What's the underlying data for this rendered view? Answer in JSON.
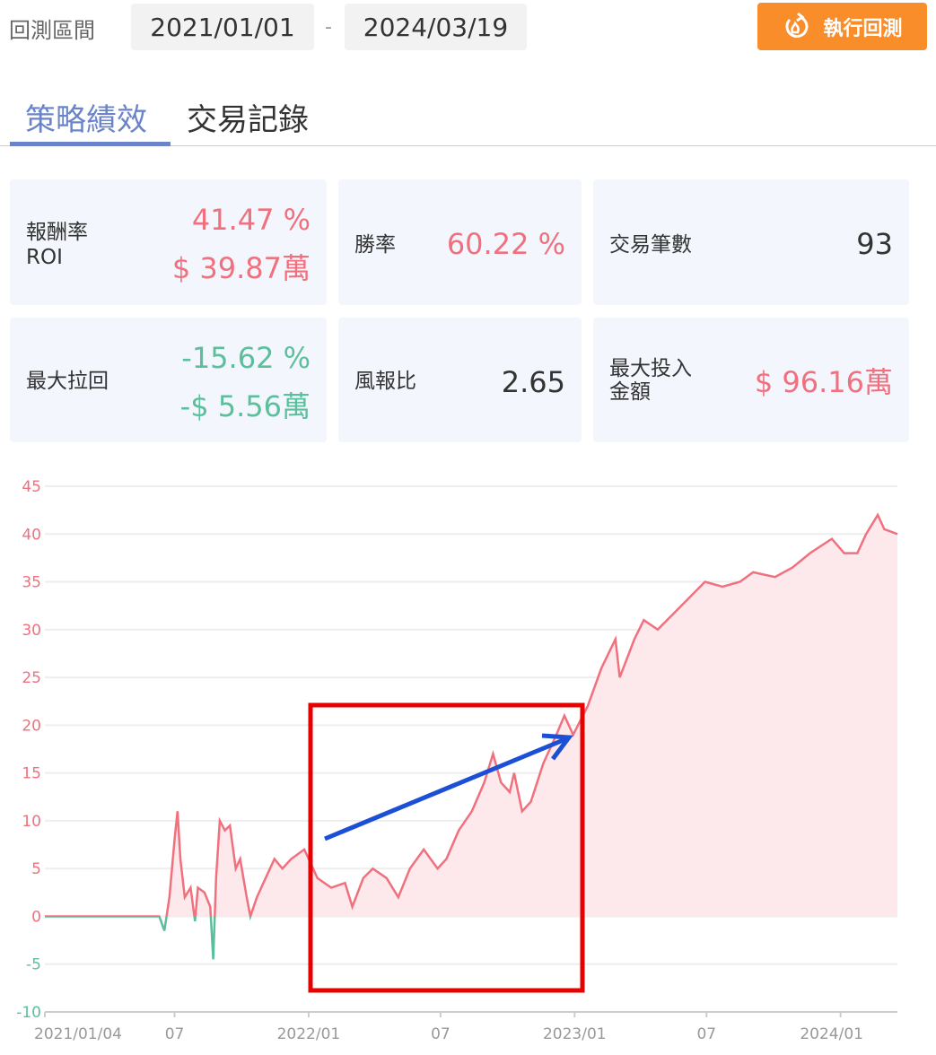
{
  "header": {
    "range_label": "回測區間",
    "start_date": "2021/01/01",
    "separator": "-",
    "end_date": "2024/03/19",
    "run_button": "執行回測",
    "run_icon": "refresh-fire-icon"
  },
  "tabs": [
    {
      "label": "策略績效",
      "active": true
    },
    {
      "label": "交易記錄",
      "active": false
    }
  ],
  "stats": {
    "roi": {
      "label1": "報酬率",
      "label2": "ROI",
      "pct": "41.47 %",
      "amount": "$ 39.87萬"
    },
    "win_rate": {
      "label": "勝率",
      "value": "60.22 %"
    },
    "trades": {
      "label": "交易筆數",
      "value": "93"
    },
    "drawdown": {
      "label": "最大拉回",
      "pct": "-15.62 %",
      "amount": "-$ 5.56萬"
    },
    "risk_reward": {
      "label": "風報比",
      "value": "2.65"
    },
    "max_invest": {
      "label1": "最大投入",
      "label2": "金額",
      "value": "$ 96.16萬"
    }
  },
  "colors": {
    "positive": "#f0707e",
    "negative": "#5cbf9c",
    "accent": "#6b84c9",
    "button": "#f98d2a",
    "card_bg": "#f3f6fd",
    "annotation_box": "#e60000",
    "annotation_arrow": "#1a4fd6"
  },
  "chart_data": {
    "type": "area",
    "ylim": [
      -10,
      45
    ],
    "yticks": [
      "45",
      "40",
      "35",
      "30",
      "25",
      "20",
      "15",
      "10",
      "5",
      "0",
      "-5",
      "-10"
    ],
    "xrange": [
      "2021/01/04",
      "2024/03/19"
    ],
    "xticks": [
      {
        "date": "2021-01-04",
        "label": "2021/01/04"
      },
      {
        "date": "2021-07-01",
        "label": "07"
      },
      {
        "date": "2022-01-01",
        "label": "2022/01"
      },
      {
        "date": "2022-07-01",
        "label": "07"
      },
      {
        "date": "2023-01-01",
        "label": "2023/01"
      },
      {
        "date": "2023-07-01",
        "label": "07"
      },
      {
        "date": "2024-01-01",
        "label": "2024/01"
      }
    ],
    "grid": true,
    "points": [
      [
        "2021-01-04",
        0
      ],
      [
        "2021-06-10",
        0
      ],
      [
        "2021-06-17",
        -1.5
      ],
      [
        "2021-06-24",
        2
      ],
      [
        "2021-07-01",
        8
      ],
      [
        "2021-07-05",
        11
      ],
      [
        "2021-07-09",
        6
      ],
      [
        "2021-07-15",
        2
      ],
      [
        "2021-07-23",
        3
      ],
      [
        "2021-07-29",
        -0.5
      ],
      [
        "2021-08-02",
        3
      ],
      [
        "2021-08-11",
        2.5
      ],
      [
        "2021-08-19",
        1
      ],
      [
        "2021-08-23",
        -4.5
      ],
      [
        "2021-08-27",
        4
      ],
      [
        "2021-09-01",
        10
      ],
      [
        "2021-09-08",
        9
      ],
      [
        "2021-09-15",
        9.5
      ],
      [
        "2021-09-23",
        5
      ],
      [
        "2021-09-29",
        6
      ],
      [
        "2021-10-08",
        2
      ],
      [
        "2021-10-13",
        0
      ],
      [
        "2021-10-22",
        2
      ],
      [
        "2021-11-03",
        4
      ],
      [
        "2021-11-15",
        6
      ],
      [
        "2021-11-26",
        5
      ],
      [
        "2021-12-08",
        6
      ],
      [
        "2021-12-26",
        7
      ],
      [
        "2022-01-13",
        4
      ],
      [
        "2022-02-01",
        3
      ],
      [
        "2022-02-20",
        3.5
      ],
      [
        "2022-03-02",
        1
      ],
      [
        "2022-03-17",
        4
      ],
      [
        "2022-03-30",
        5
      ],
      [
        "2022-04-18",
        4
      ],
      [
        "2022-05-04",
        2
      ],
      [
        "2022-05-20",
        5
      ],
      [
        "2022-06-08",
        7
      ],
      [
        "2022-06-27",
        5
      ],
      [
        "2022-07-09",
        6
      ],
      [
        "2022-07-26",
        9
      ],
      [
        "2022-08-13",
        11
      ],
      [
        "2022-08-30",
        14
      ],
      [
        "2022-09-11",
        17
      ],
      [
        "2022-09-22",
        14
      ],
      [
        "2022-10-04",
        13
      ],
      [
        "2022-10-10",
        15
      ],
      [
        "2022-10-21",
        11
      ],
      [
        "2022-11-02",
        12
      ],
      [
        "2022-11-19",
        16
      ],
      [
        "2022-12-07",
        19
      ],
      [
        "2022-12-18",
        21
      ],
      [
        "2022-12-30",
        19
      ],
      [
        "2023-01-19",
        22
      ],
      [
        "2023-02-07",
        26
      ],
      [
        "2023-02-26",
        29
      ],
      [
        "2023-03-04",
        25
      ],
      [
        "2023-03-24",
        29
      ],
      [
        "2023-04-06",
        31
      ],
      [
        "2023-04-25",
        30
      ],
      [
        "2023-05-21",
        32
      ],
      [
        "2023-06-29",
        35
      ],
      [
        "2023-07-23",
        34.5
      ],
      [
        "2023-08-16",
        35
      ],
      [
        "2023-09-03",
        36
      ],
      [
        "2023-10-03",
        35.5
      ],
      [
        "2023-10-27",
        36.5
      ],
      [
        "2023-11-20",
        38
      ],
      [
        "2023-12-20",
        39.5
      ],
      [
        "2024-01-06",
        38
      ],
      [
        "2024-01-24",
        38
      ],
      [
        "2024-02-05",
        40
      ],
      [
        "2024-02-21",
        42
      ],
      [
        "2024-03-01",
        40.5
      ],
      [
        "2024-03-19",
        40
      ]
    ]
  }
}
